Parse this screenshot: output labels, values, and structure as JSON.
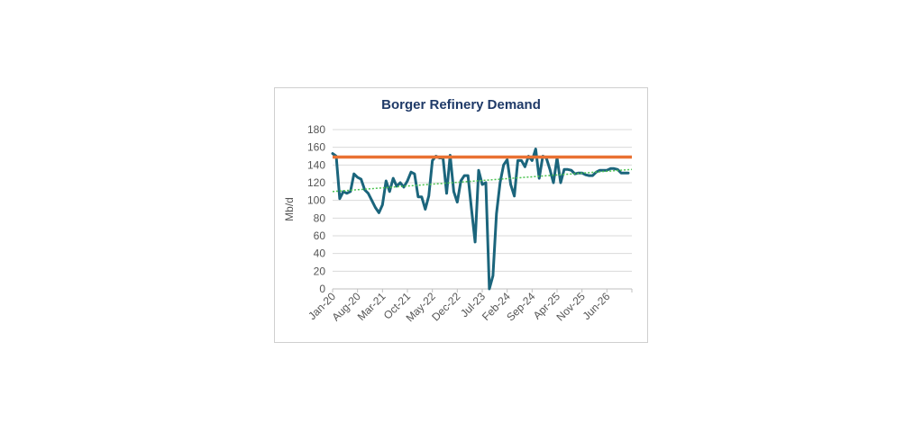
{
  "chart_data": {
    "type": "line",
    "title": "Borger Refinery Demand",
    "xlabel": "",
    "ylabel": "Mb/d",
    "ylim": [
      0,
      180
    ],
    "yticks": [
      0,
      20,
      40,
      60,
      80,
      100,
      120,
      140,
      160,
      180
    ],
    "x_tick_labels": [
      "Jan-20",
      "Aug-20",
      "Mar-21",
      "Oct-21",
      "May-22",
      "Dec-22",
      "Jul-23",
      "Feb-24",
      "Sep-24",
      "Apr-25",
      "Nov-25",
      "Jun-26"
    ],
    "x_start": "Jan-20",
    "x_end": "Jan-27",
    "grid": true,
    "legend": "none",
    "series": [
      {
        "style": "line",
        "color": "#1b657c",
        "x": [
          "Jan-20",
          "Feb-20",
          "Mar-20",
          "Apr-20",
          "May-20",
          "Jun-20",
          "Jul-20",
          "Aug-20",
          "Sep-20",
          "Oct-20",
          "Nov-20",
          "Dec-20",
          "Jan-21",
          "Feb-21",
          "Mar-21",
          "Apr-21",
          "May-21",
          "Jun-21",
          "Jul-21",
          "Aug-21",
          "Sep-21",
          "Oct-21",
          "Nov-21",
          "Dec-21",
          "Jan-22",
          "Feb-22",
          "Mar-22",
          "Apr-22",
          "May-22",
          "Jun-22",
          "Jul-22",
          "Aug-22",
          "Sep-22",
          "Oct-22",
          "Nov-22",
          "Dec-22",
          "Jan-23",
          "Feb-23",
          "Mar-23",
          "Apr-23",
          "May-23",
          "Jun-23",
          "Jul-23",
          "Aug-23",
          "Sep-23",
          "Oct-23",
          "Nov-23",
          "Dec-23",
          "Jan-24",
          "Feb-24",
          "Mar-24",
          "Apr-24",
          "May-24",
          "Jun-24",
          "Jul-24",
          "Aug-24",
          "Sep-24",
          "Oct-24",
          "Nov-24",
          "Dec-24",
          "Jan-25",
          "Feb-25",
          "Mar-25",
          "Apr-25",
          "May-25",
          "Jun-25",
          "Jul-25",
          "Aug-25",
          "Sep-25",
          "Oct-25",
          "Nov-25",
          "Dec-25",
          "Jan-26",
          "Feb-26",
          "Mar-26",
          "Apr-26",
          "May-26",
          "Jun-26",
          "Jul-26",
          "Aug-26",
          "Sep-26",
          "Oct-26",
          "Nov-26",
          "Dec-26"
        ],
        "y": [
          153,
          150,
          102,
          110,
          108,
          110,
          130,
          126,
          124,
          112,
          108,
          100,
          92,
          86,
          95,
          122,
          110,
          125,
          116,
          120,
          115,
          122,
          132,
          130,
          104,
          104,
          90,
          105,
          145,
          150,
          148,
          148,
          108,
          151,
          110,
          98,
          122,
          128,
          128,
          90,
          53,
          134,
          118,
          120,
          0,
          15,
          85,
          120,
          140,
          146,
          118,
          105,
          145,
          145,
          138,
          150,
          145,
          158,
          125,
          150,
          148,
          135,
          120,
          148,
          120,
          135,
          135,
          134,
          130,
          131,
          131,
          129,
          128,
          128,
          132,
          134,
          134,
          134,
          136,
          136,
          135,
          131,
          131,
          131
        ]
      },
      {
        "style": "flat",
        "color": "#e97132",
        "y": 149
      },
      {
        "style": "dotted-trend",
        "color": "#4cc350",
        "y_start": 110,
        "y_end": 135
      }
    ]
  }
}
